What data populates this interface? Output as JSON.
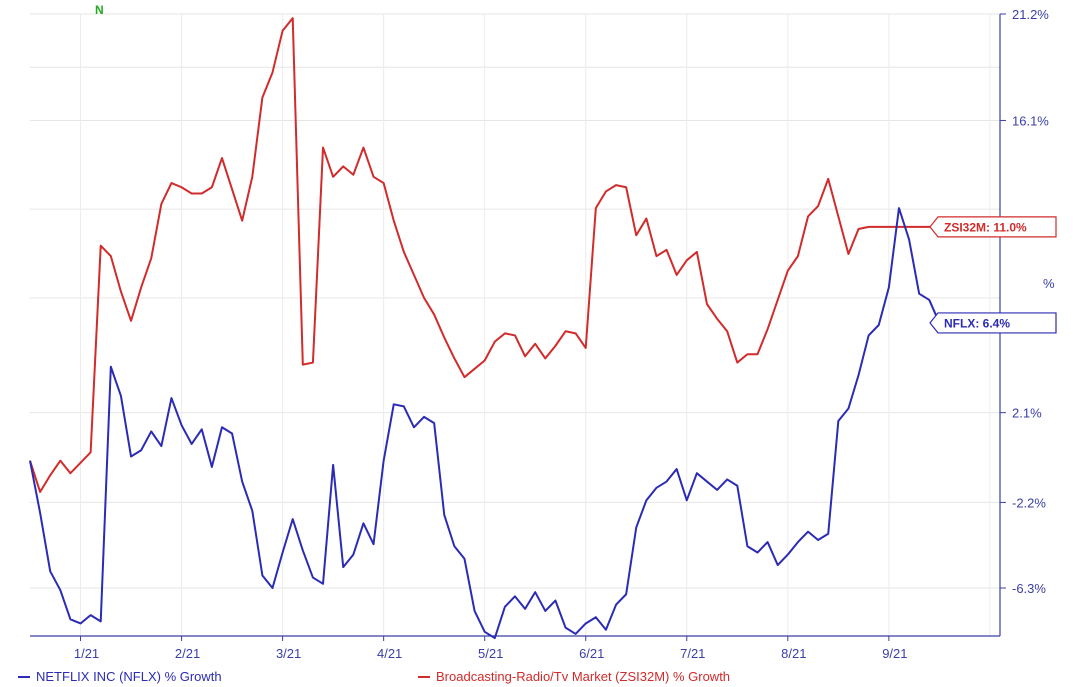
{
  "chart_data": {
    "type": "line",
    "title": "",
    "xlabel": "",
    "ylabel": "",
    "x_ticks": [
      "1/21",
      "2/21",
      "3/21",
      "4/21",
      "5/21",
      "6/21",
      "7/21",
      "8/21",
      "9/21"
    ],
    "y_ticks": [
      "21.2%",
      "16.1%",
      "2.1%",
      "-2.2%",
      "-6.3%"
    ],
    "y_tick_values": [
      21.2,
      16.1,
      2.1,
      -2.2,
      -6.3
    ],
    "ylim": [
      -8.6,
      21.2
    ],
    "xlim": [
      0,
      9.6
    ],
    "grid": true,
    "corner_mark": "N",
    "stray_mark": "%",
    "series": [
      {
        "name": "NETFLIX INC (NFLX) % Growth",
        "color": "#2b2bb5",
        "tag": "NFLX: 6.4%",
        "x": [
          0.0,
          0.1,
          0.2,
          0.3,
          0.4,
          0.5,
          0.6,
          0.7,
          0.8,
          0.9,
          1.0,
          1.1,
          1.2,
          1.3,
          1.4,
          1.5,
          1.6,
          1.7,
          1.8,
          1.9,
          2.0,
          2.1,
          2.2,
          2.3,
          2.4,
          2.5,
          2.6,
          2.7,
          2.8,
          2.9,
          3.0,
          3.1,
          3.2,
          3.3,
          3.4,
          3.5,
          3.6,
          3.7,
          3.8,
          3.9,
          4.0,
          4.1,
          4.2,
          4.3,
          4.4,
          4.5,
          4.6,
          4.7,
          4.8,
          4.9,
          5.0,
          5.1,
          5.2,
          5.3,
          5.4,
          5.5,
          5.6,
          5.7,
          5.8,
          5.9,
          6.0,
          6.1,
          6.2,
          6.3,
          6.4,
          6.5,
          6.6,
          6.7,
          6.8,
          6.9,
          7.0,
          7.1,
          7.2,
          7.3,
          7.4,
          7.5,
          7.6,
          7.7,
          7.8,
          7.9,
          8.0,
          8.1,
          8.2,
          8.3,
          8.4,
          8.5,
          8.6,
          8.7,
          8.8,
          8.9,
          9.0
        ],
        "values": [
          -0.2,
          -2.7,
          -5.5,
          -6.4,
          -7.8,
          -8.0,
          -7.6,
          -7.9,
          4.3,
          2.9,
          0.0,
          0.3,
          1.2,
          0.5,
          2.8,
          1.5,
          0.6,
          1.3,
          -0.5,
          1.4,
          1.1,
          -1.2,
          -2.6,
          -5.7,
          -6.3,
          -4.6,
          -3.0,
          -4.5,
          -5.8,
          -6.1,
          -0.4,
          -5.3,
          -4.7,
          -3.2,
          -4.2,
          -0.2,
          2.5,
          2.4,
          1.4,
          1.9,
          1.6,
          -2.8,
          -4.3,
          -4.9,
          -7.4,
          -8.4,
          -8.7,
          -7.2,
          -6.7,
          -7.3,
          -6.5,
          -7.4,
          -6.9,
          -8.2,
          -8.5,
          -8.0,
          -7.7,
          -8.3,
          -7.1,
          -6.6,
          -3.4,
          -2.1,
          -1.5,
          -1.2,
          -0.6,
          -2.1,
          -0.8,
          -1.2,
          -1.6,
          -1.1,
          -1.4,
          -4.3,
          -4.6,
          -4.1,
          -5.2,
          -4.7,
          -4.1,
          -3.6,
          -4.0,
          -3.7,
          1.7,
          2.3,
          3.9,
          5.8,
          6.3,
          8.1,
          11.9,
          10.4,
          7.8,
          7.5,
          6.4
        ]
      },
      {
        "name": "Broadcasting-Radio/Tv Market (ZSI32M) % Growth",
        "color": "#d12b2b",
        "tag": "ZSI32M: 11.0%",
        "x": [
          0.0,
          0.1,
          0.2,
          0.3,
          0.4,
          0.5,
          0.6,
          0.7,
          0.8,
          0.9,
          1.0,
          1.1,
          1.2,
          1.3,
          1.4,
          1.5,
          1.6,
          1.7,
          1.8,
          1.9,
          2.0,
          2.1,
          2.2,
          2.3,
          2.4,
          2.5,
          2.6,
          2.7,
          2.8,
          2.9,
          3.0,
          3.1,
          3.2,
          3.3,
          3.4,
          3.5,
          3.6,
          3.7,
          3.8,
          3.9,
          4.0,
          4.1,
          4.2,
          4.3,
          4.4,
          4.5,
          4.6,
          4.7,
          4.8,
          4.9,
          5.0,
          5.1,
          5.2,
          5.3,
          5.4,
          5.5,
          5.6,
          5.7,
          5.8,
          5.9,
          6.0,
          6.1,
          6.2,
          6.3,
          6.4,
          6.5,
          6.6,
          6.7,
          6.8,
          6.9,
          7.0,
          7.1,
          7.2,
          7.3,
          7.4,
          7.5,
          7.6,
          7.7,
          7.8,
          7.9,
          8.0,
          8.1,
          8.2,
          8.3,
          8.4,
          8.5,
          8.6,
          8.7,
          8.8,
          8.9,
          9.0
        ],
        "values": [
          -0.2,
          -1.7,
          -0.9,
          -0.2,
          -0.8,
          -0.3,
          0.2,
          10.1,
          9.6,
          7.9,
          6.5,
          8.1,
          9.5,
          12.1,
          13.1,
          12.9,
          12.6,
          12.6,
          12.9,
          14.3,
          12.8,
          11.3,
          13.4,
          17.2,
          18.4,
          20.4,
          21.0,
          4.4,
          4.5,
          14.8,
          13.4,
          13.9,
          13.5,
          14.8,
          13.4,
          13.1,
          11.3,
          9.8,
          8.7,
          7.6,
          6.8,
          5.7,
          4.7,
          3.8,
          4.2,
          4.6,
          5.5,
          5.9,
          5.8,
          4.8,
          5.4,
          4.7,
          5.3,
          6.0,
          5.9,
          5.2,
          11.9,
          12.7,
          13.0,
          12.9,
          10.6,
          11.4,
          9.6,
          9.9,
          8.7,
          9.4,
          9.8,
          7.3,
          6.6,
          6.0,
          4.5,
          4.9,
          4.9,
          6.1,
          7.5,
          8.9,
          9.6,
          11.5,
          12.0,
          13.3,
          11.5,
          9.7,
          10.9,
          11.0,
          11.0,
          11.0,
          11.0,
          11.0,
          11.0,
          11.0,
          11.0
        ]
      }
    ]
  },
  "legend": {
    "nflx_label": "NETFLIX INC (NFLX) % Growth",
    "zsi_label": "Broadcasting-Radio/Tv Market (ZSI32M) % Growth"
  }
}
